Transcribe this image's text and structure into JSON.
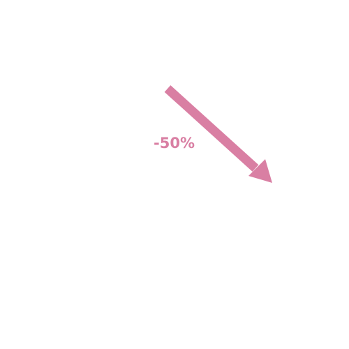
{
  "indicator": {
    "change_text": "-50%",
    "direction": "down",
    "icon": "arrow-down-right-icon",
    "color": "#d97fa3"
  }
}
